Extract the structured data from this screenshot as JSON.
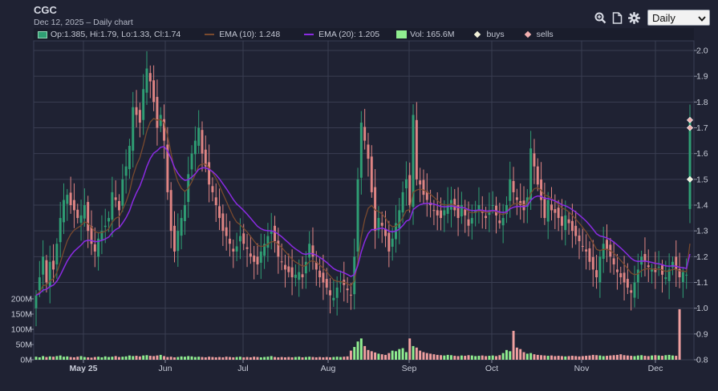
{
  "header": {
    "title": "CGC",
    "subtitle": "Dec 12, 2025 – Daily chart"
  },
  "toolbar": {
    "interval": "Daily"
  },
  "legend": {
    "ohlc": "Op:1.385, Hi:1.79, Lo:1.33, Cl:1.74",
    "ema10": "EMA (10): 1.248",
    "ema20": "EMA (20): 1.205",
    "volume": "Vol: 165.6M",
    "buys": "buys",
    "sells": "sells"
  },
  "colors": {
    "up": "#2f9e74",
    "down": "#e08584",
    "ema10": "#7a4a2e",
    "ema20": "#8a2be2",
    "volume_up": "#90ee90",
    "volume_down": "#f0a0a0",
    "buy_marker": "#f0f0d8",
    "sell_marker": "#f2b0b0"
  },
  "chart_data": {
    "type": "candlestick",
    "x_tick_labels": [
      "May 25",
      "Jun",
      "Jul",
      "Aug",
      "Sep",
      "Oct",
      "Nov",
      "Dec"
    ],
    "price_axis": {
      "ticks": [
        "0.8",
        "0.9",
        "1.0",
        "1.1",
        "1.2",
        "1.3",
        "1.4",
        "1.5",
        "1.6",
        "1.7",
        "1.8",
        "1.9",
        "2.0"
      ],
      "range": [
        0.8,
        2.0
      ]
    },
    "volume_axis": {
      "ticks": [
        "0M",
        "50M",
        "100M",
        "150M",
        "200M"
      ],
      "range": [
        0,
        200
      ]
    },
    "grid": true,
    "closes": [
      1.05,
      1.12,
      1.2,
      1.1,
      1.18,
      1.15,
      1.25,
      1.35,
      1.42,
      1.44,
      1.4,
      1.38,
      1.35,
      1.36,
      1.4,
      1.3,
      1.25,
      1.22,
      1.27,
      1.3,
      1.32,
      1.35,
      1.45,
      1.42,
      1.38,
      1.5,
      1.55,
      1.63,
      1.78,
      1.75,
      1.72,
      1.85,
      1.93,
      1.88,
      1.8,
      1.7,
      1.75,
      1.65,
      1.45,
      1.3,
      1.22,
      1.3,
      1.35,
      1.4,
      1.52,
      1.6,
      1.65,
      1.7,
      1.6,
      1.55,
      1.48,
      1.45,
      1.4,
      1.35,
      1.3,
      1.28,
      1.25,
      1.22,
      1.24,
      1.28,
      1.25,
      1.23,
      1.2,
      1.18,
      1.17,
      1.22,
      1.25,
      1.28,
      1.3,
      1.26,
      1.2,
      1.18,
      1.15,
      1.14,
      1.12,
      1.13,
      1.14,
      1.12,
      1.18,
      1.25,
      1.2,
      1.15,
      1.12,
      1.1,
      1.08,
      1.05,
      1.04,
      1.08,
      1.1,
      1.09,
      1.07,
      1.05,
      1.2,
      1.5,
      1.72,
      1.65,
      1.58,
      1.45,
      1.3,
      1.35,
      1.32,
      1.28,
      1.22,
      1.27,
      1.33,
      1.38,
      1.45,
      1.5,
      1.4,
      1.75,
      1.5,
      1.48,
      1.44,
      1.42,
      1.4,
      1.38,
      1.36,
      1.35,
      1.38,
      1.4,
      1.42,
      1.38,
      1.35,
      1.4,
      1.36,
      1.32,
      1.35,
      1.38,
      1.4,
      1.37,
      1.35,
      1.38,
      1.4,
      1.36,
      1.33,
      1.35,
      1.4,
      1.5,
      1.45,
      1.42,
      1.4,
      1.38,
      1.43,
      1.62,
      1.55,
      1.48,
      1.42,
      1.35,
      1.42,
      1.38,
      1.37,
      1.35,
      1.32,
      1.36,
      1.33,
      1.3,
      1.28,
      1.26,
      1.24,
      1.22,
      1.18,
      1.15,
      1.12,
      1.2,
      1.25,
      1.23,
      1.2,
      1.17,
      1.14,
      1.12,
      1.1,
      1.08,
      1.06,
      1.1,
      1.15,
      1.2,
      1.18,
      1.16,
      1.15,
      1.14,
      1.16,
      1.13,
      1.12,
      1.15,
      1.18,
      1.15,
      1.12,
      1.14,
      1.13,
      1.74
    ],
    "volume_millions": [
      10,
      8,
      12,
      9,
      11,
      10,
      12,
      14,
      10,
      11,
      9,
      8,
      10,
      12,
      9,
      8,
      7,
      9,
      10,
      8,
      11,
      9,
      10,
      12,
      9,
      10,
      11,
      14,
      12,
      13,
      11,
      14,
      15,
      13,
      12,
      14,
      16,
      12,
      9,
      10,
      8,
      9,
      11,
      10,
      12,
      11,
      9,
      10,
      9,
      8,
      10,
      9,
      8,
      9,
      8,
      10,
      9,
      8,
      9,
      10,
      8,
      9,
      8,
      10,
      9,
      8,
      9,
      10,
      12,
      9,
      8,
      9,
      8,
      9,
      8,
      9,
      10,
      8,
      9,
      10,
      9,
      8,
      9,
      8,
      9,
      8,
      9,
      10,
      9,
      10,
      11,
      30,
      42,
      60,
      70,
      45,
      32,
      28,
      24,
      20,
      18,
      16,
      22,
      30,
      28,
      35,
      38,
      25,
      70,
      45,
      40,
      30,
      25,
      22,
      20,
      18,
      16,
      15,
      14,
      16,
      15,
      13,
      12,
      14,
      13,
      15,
      14,
      12,
      13,
      14,
      12,
      13,
      14,
      12,
      15,
      22,
      32,
      28,
      95,
      40,
      35,
      25,
      20,
      22,
      18,
      16,
      15,
      14,
      13,
      14,
      12,
      13,
      12,
      11,
      12,
      13,
      12,
      11,
      12,
      13,
      14,
      16,
      15,
      14,
      12,
      13,
      14,
      15,
      16,
      18,
      15,
      14,
      13,
      12,
      14,
      15,
      13,
      12,
      14,
      15,
      14,
      13,
      15,
      16,
      14,
      13,
      166
    ],
    "ema10_last": 1.248,
    "ema20_last": 1.205,
    "last_bar": {
      "open": 1.385,
      "high": 1.79,
      "low": 1.33,
      "close": 1.74,
      "volume_millions": 165.6
    },
    "markers": [
      {
        "type": "sell",
        "price": 1.73
      },
      {
        "type": "sell",
        "price": 1.7
      },
      {
        "type": "buy",
        "price": 1.5
      }
    ]
  }
}
